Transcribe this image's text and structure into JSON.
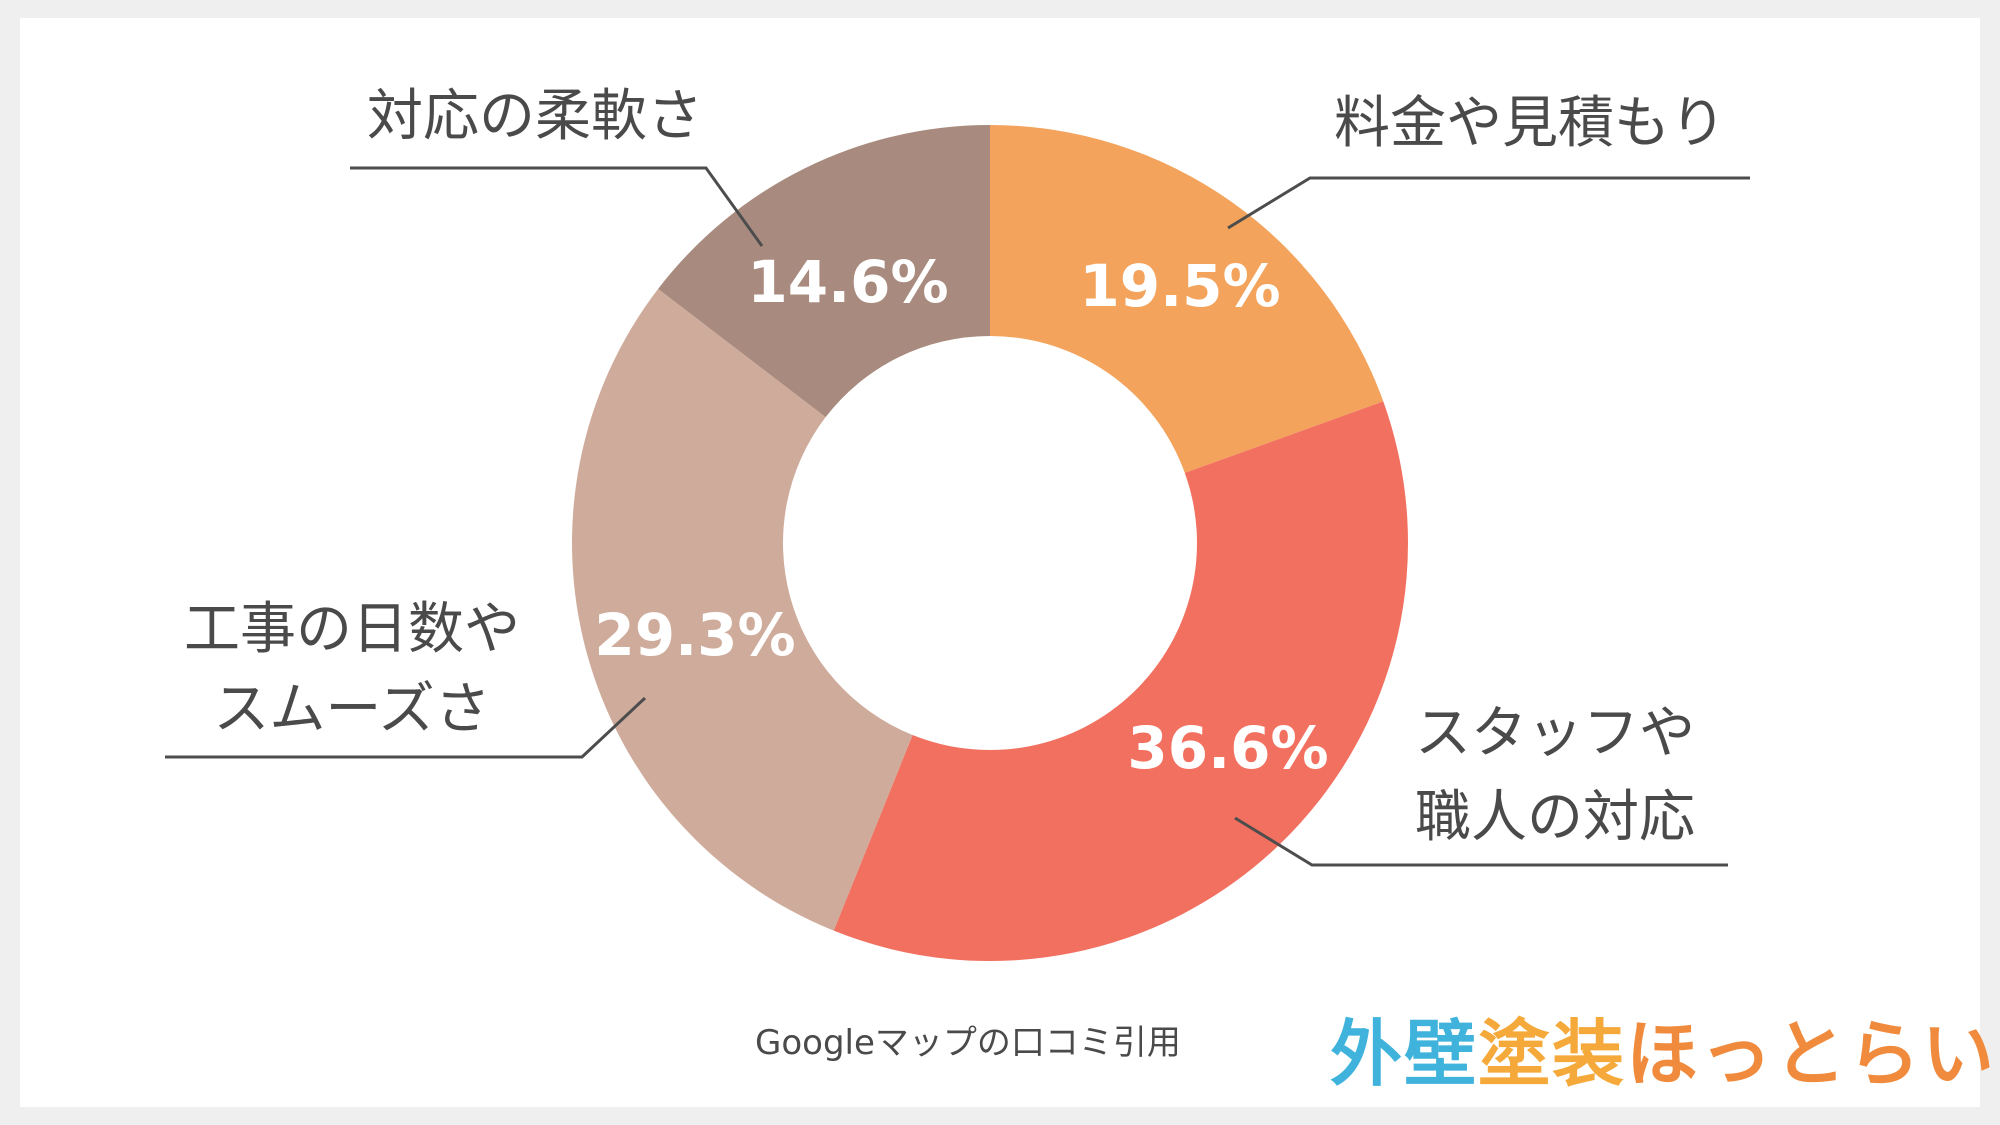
{
  "chart_data": {
    "type": "pie",
    "donut": true,
    "categories": [
      "料金や見積もり",
      "スタッフや職人の対応",
      "工事の日数やスムーズさ",
      "対応の柔軟さ"
    ],
    "values": [
      19.5,
      36.6,
      29.3,
      14.6
    ],
    "value_labels": [
      "19.5%",
      "36.6%",
      "29.3%",
      "14.6%"
    ],
    "label_lines": [
      [
        "料金や見積もり"
      ],
      [
        "スタッフや",
        "職人の対応"
      ],
      [
        "工事の日数や",
        "スムーズさ"
      ],
      [
        "対応の柔軟さ"
      ]
    ],
    "colors": [
      "#f3a35c",
      "#f2705f",
      "#cfab9b",
      "#a88b7e"
    ],
    "start": "top",
    "direction": "clockwise"
  },
  "source_note": "Googleマップの口コミ引用",
  "logo": {
    "part1": "外壁",
    "part2": "塗装",
    "part3": "ほっとらいん"
  }
}
